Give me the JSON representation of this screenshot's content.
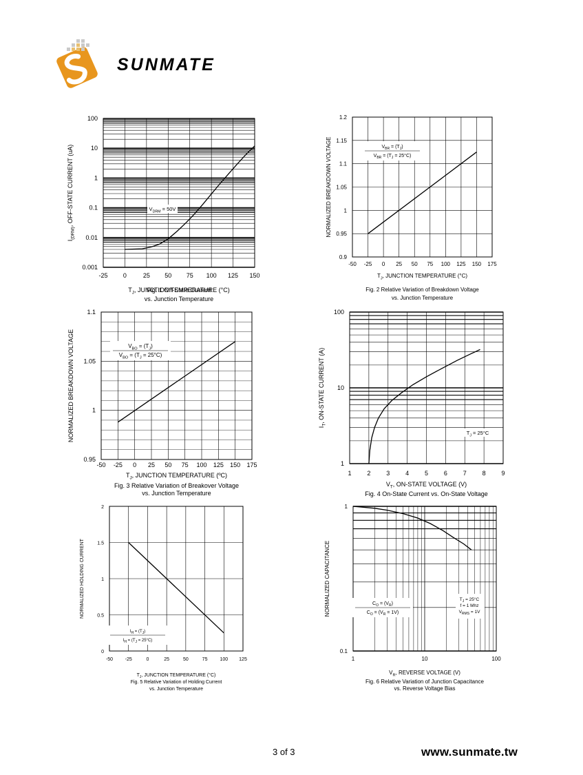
{
  "brand": {
    "wordmark": "SUNMATE",
    "primary_color": "#e8961e",
    "dark_color": "#1a1a1a"
  },
  "footer": {
    "page": "3 of 3",
    "url": "www.sunmate.tw"
  },
  "chart_data": [
    {
      "id": "fig1",
      "type": "line",
      "yscale": "log",
      "title": "Fig. 1  Off-State Current vs. Junction Temperature",
      "xlabel": "T_J, JUNCTION TEMPERATURE (°C)",
      "ylabel": "I_(DRM), OFF-STATE CURRENT (uA)",
      "xlim": [
        -25,
        150
      ],
      "ylim": [
        0.001,
        100
      ],
      "xticks": [
        "-25",
        "0",
        "25",
        "50",
        "75",
        "100",
        "125",
        "150"
      ],
      "yticks": [
        "0.001",
        "0.01",
        "0.1",
        "1",
        "10",
        "100"
      ],
      "annotation": "V_DRM = 50V",
      "x": [
        0,
        20,
        30,
        40,
        50,
        60,
        70,
        80,
        90,
        100,
        110,
        120,
        130,
        140,
        150
      ],
      "y": [
        0.004,
        0.0042,
        0.0048,
        0.006,
        0.009,
        0.016,
        0.03,
        0.06,
        0.13,
        0.29,
        0.65,
        1.4,
        3.0,
        6.2,
        12
      ]
    },
    {
      "id": "fig2",
      "type": "line",
      "title": "Fig. 2  Relative Variation of Breakdown Voltage vs. Junction Temperature",
      "xlabel": "T_J, JUNCTION TEMPERATURE (°C)",
      "ylabel": "NORMALIZED  BREAKDOWN VOLTAGE",
      "xlim": [
        -50,
        175
      ],
      "ylim": [
        0.9,
        1.2
      ],
      "xticks": [
        "-50",
        "-25",
        "0",
        "25",
        "50",
        "75",
        "100",
        "125",
        "150",
        "175"
      ],
      "yticks": [
        "0.9",
        "0.95",
        "1",
        "1.05",
        "1.1",
        "1.15",
        "1.2"
      ],
      "annotation": [
        "V_BR = (T_J)",
        "V_BR = (T_J = 25°C)"
      ],
      "x": [
        -25,
        150
      ],
      "y": [
        0.95,
        1.125
      ]
    },
    {
      "id": "fig3",
      "type": "line",
      "title": "Fig. 3  Relative Variation of Breakover Voltage vs. Junction Temperature",
      "xlabel": "T_J, JUNCTION TEMPERATURE (ºC)",
      "ylabel": "NORMALIZED BREAKDOWN VOLTAGE",
      "xlim": [
        -50,
        175
      ],
      "ylim": [
        0.95,
        1.1
      ],
      "xticks": [
        "-50",
        "-25",
        "0",
        "25",
        "50",
        "75",
        "100",
        "125",
        "150",
        "175"
      ],
      "yticks": [
        "0.95",
        "1",
        "1.05",
        "1.1"
      ],
      "annotation": [
        "V_BO = (T_J)",
        "V_BO = (T_J = 25°C)"
      ],
      "x": [
        -25,
        150
      ],
      "y": [
        0.988,
        1.07
      ]
    },
    {
      "id": "fig4",
      "type": "line",
      "yscale": "log",
      "title": "Fig. 4  On-State Current vs. On-State Voltage",
      "xlabel": "V_T, ON-STATE VOLTAGE (V)",
      "ylabel": "I_T, ON-STATE CURRENT (A)",
      "xlim": [
        1,
        9
      ],
      "ylim": [
        1,
        100
      ],
      "xticks": [
        "1",
        "2",
        "3",
        "4",
        "5",
        "6",
        "7",
        "8",
        "9"
      ],
      "yticks": [
        "1",
        "10",
        "100"
      ],
      "annotation": "T_J = 25°C",
      "x": [
        2.0,
        2.05,
        2.15,
        2.3,
        2.5,
        2.8,
        3.2,
        3.7,
        4.3,
        5.0,
        5.8,
        6.6,
        7.3,
        7.8
      ],
      "y": [
        1.0,
        1.5,
        2.2,
        3.0,
        4.0,
        5.3,
        6.8,
        8.6,
        11,
        14,
        18,
        23,
        28,
        32
      ]
    },
    {
      "id": "fig5",
      "type": "line",
      "title": "Fig. 5  Relative Variation of Holding Current vs. Junction Temperature",
      "xlabel": "T_J, JUNCTION TEMPERATURE (°C)",
      "ylabel": "NORMALIZED HOLDING CURRENT",
      "xlim": [
        -50,
        125
      ],
      "ylim": [
        0,
        2
      ],
      "xticks": [
        "-50",
        "-25",
        "0",
        "25",
        "50",
        "75",
        "100",
        "125"
      ],
      "yticks": [
        "0",
        "0.5",
        "1",
        "1.5",
        "2"
      ],
      "annotation": [
        "I_H = (T_J)",
        "I_H = (T_J = 25°C)"
      ],
      "x": [
        -25,
        100
      ],
      "y": [
        1.5,
        0.25
      ]
    },
    {
      "id": "fig6",
      "type": "line",
      "xscale": "log",
      "yscale": "log",
      "title": "Fig. 6  Relative Variation of Junction Capacitance vs. Reverse Voltage Bias",
      "xlabel": "V_R, REVERSE VOLTAGE (V)",
      "ylabel": "NORMALIZED CAPACITANCE",
      "xlim": [
        1,
        100
      ],
      "ylim": [
        0.1,
        1
      ],
      "xticks": [
        "1",
        "10",
        "100"
      ],
      "yticks": [
        "0.1",
        "1"
      ],
      "annotation": [
        "C_O = (V_R)",
        "C_O = (V_R = 1V)"
      ],
      "conditions": [
        "T_J = 25°C",
        "f = 1 Mhz",
        "V_RMS = 1V"
      ],
      "x": [
        1,
        2,
        3,
        5,
        8,
        12,
        18,
        25,
        35,
        45
      ],
      "y": [
        1.0,
        0.97,
        0.94,
        0.89,
        0.83,
        0.76,
        0.68,
        0.61,
        0.55,
        0.5
      ]
    }
  ]
}
